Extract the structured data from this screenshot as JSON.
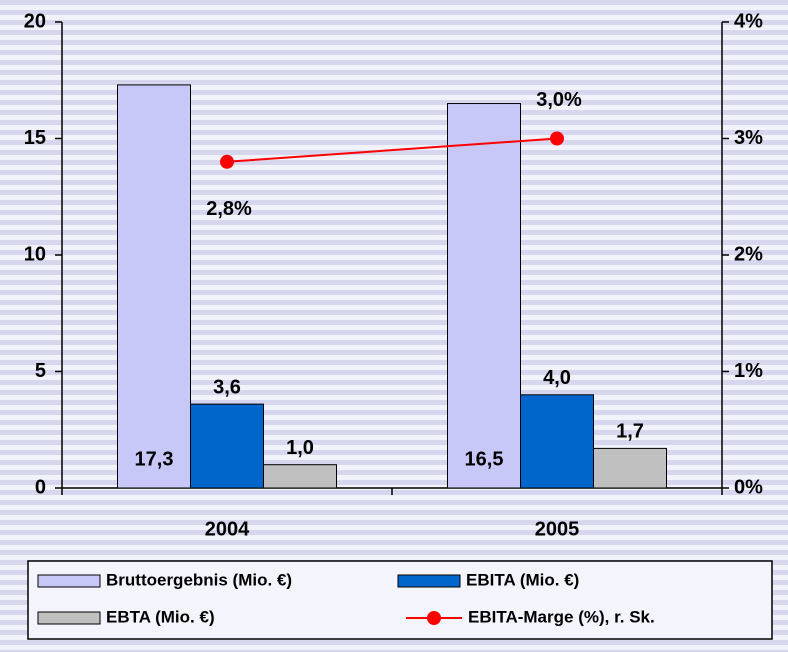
{
  "chart_data": {
    "type": "bar",
    "categories": [
      "2004",
      "2005"
    ],
    "series": [
      {
        "name": "Bruttoergebnis (Mio. €)",
        "color": "#c8c8f8",
        "values": [
          17.3,
          16.5
        ],
        "value_labels": [
          "17,3",
          "16,5"
        ]
      },
      {
        "name": "EBITA (Mio. €)",
        "color": "#0066cc",
        "values": [
          3.6,
          4.0
        ],
        "value_labels": [
          "3,6",
          "4,0"
        ]
      },
      {
        "name": "EBTA (Mio. €)",
        "color": "#c0c0c0",
        "values": [
          1.0,
          1.7
        ],
        "value_labels": [
          "1,0",
          "1,7"
        ]
      },
      {
        "name": "EBITA-Marge (%), r. Sk.",
        "color": "#ff0000",
        "type": "line",
        "axis": "y2",
        "values": [
          2.8,
          3.0
        ],
        "value_labels": [
          "2,8%",
          "3,0%"
        ]
      }
    ],
    "ylim": [
      0,
      20
    ],
    "yticks": [
      0,
      5,
      10,
      15,
      20
    ],
    "y2lim": [
      0,
      4
    ],
    "y2ticks": [
      {
        "value": 0,
        "label": "0%"
      },
      {
        "value": 1,
        "label": "1%"
      },
      {
        "value": 2,
        "label": "2%"
      },
      {
        "value": 3,
        "label": "3%"
      },
      {
        "value": 4,
        "label": "4%"
      }
    ],
    "grid": false,
    "legend": "bottom"
  }
}
